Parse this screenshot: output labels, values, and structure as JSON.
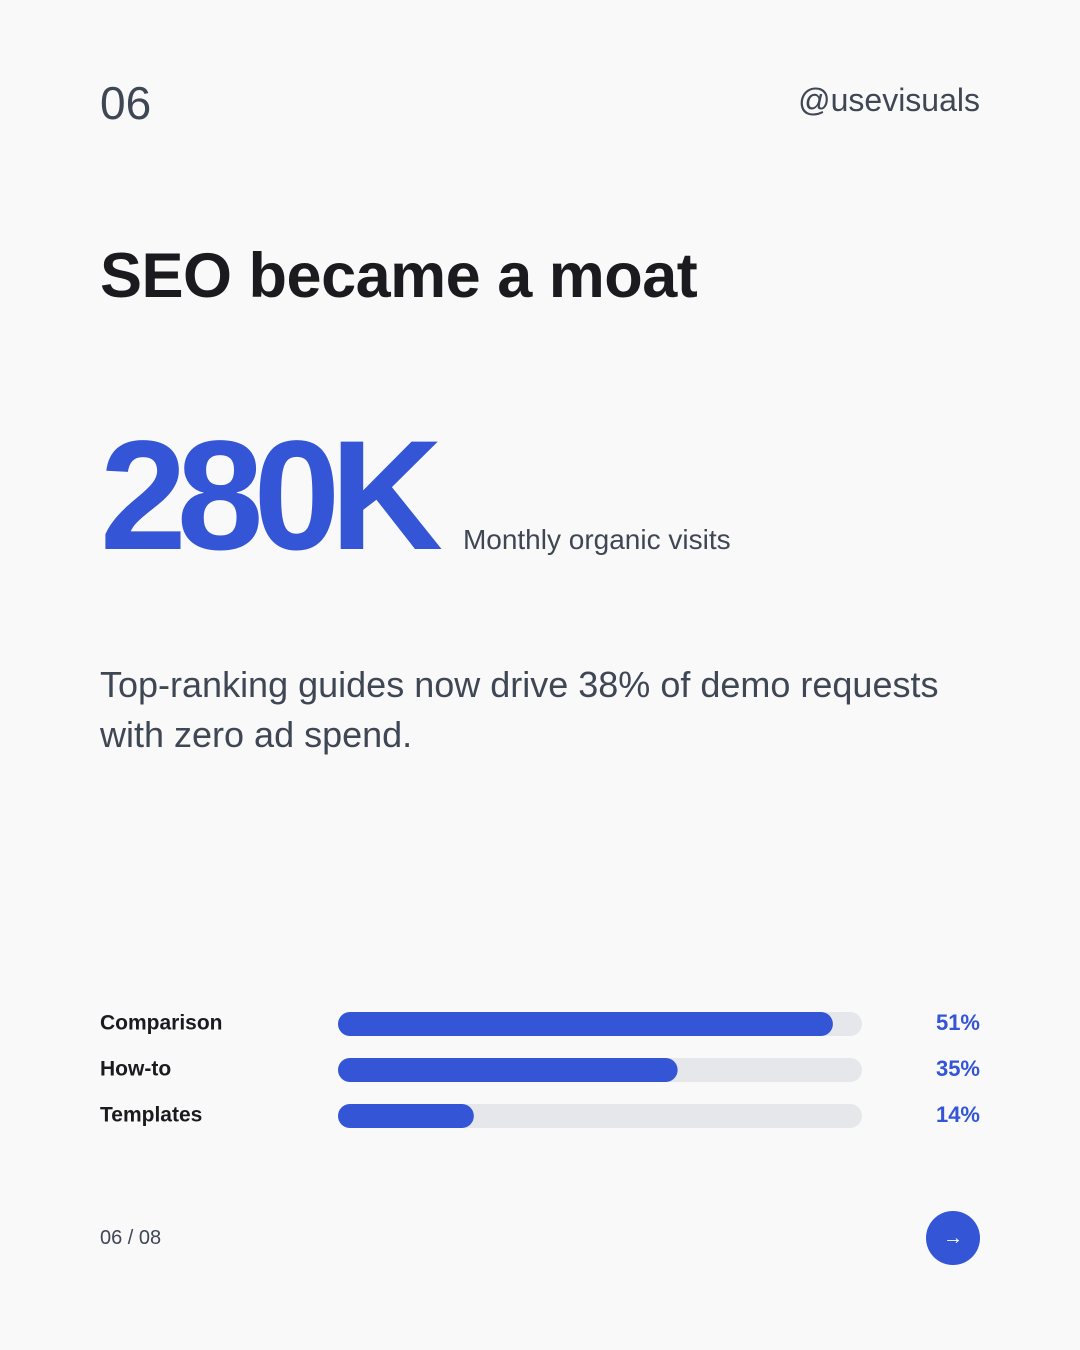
{
  "header": {
    "number": "06",
    "handle": "@usevisuals"
  },
  "title": "SEO became a moat",
  "stat": {
    "value": "280K",
    "label": "Monthly organic visits"
  },
  "body": "Top-ranking guides now drive 38% of demo requests with zero ad spend.",
  "chart_data": {
    "type": "bar",
    "orientation": "horizontal",
    "categories": [
      "Comparison",
      "How-to",
      "Templates"
    ],
    "values": [
      51,
      35,
      14
    ],
    "value_labels": [
      "51%",
      "35%",
      "14%"
    ],
    "color": "#3355d6",
    "track_color": "#e5e7eb",
    "xlim": [
      0,
      54
    ]
  },
  "footer": {
    "pagination": "06 / 08",
    "next": "→"
  }
}
